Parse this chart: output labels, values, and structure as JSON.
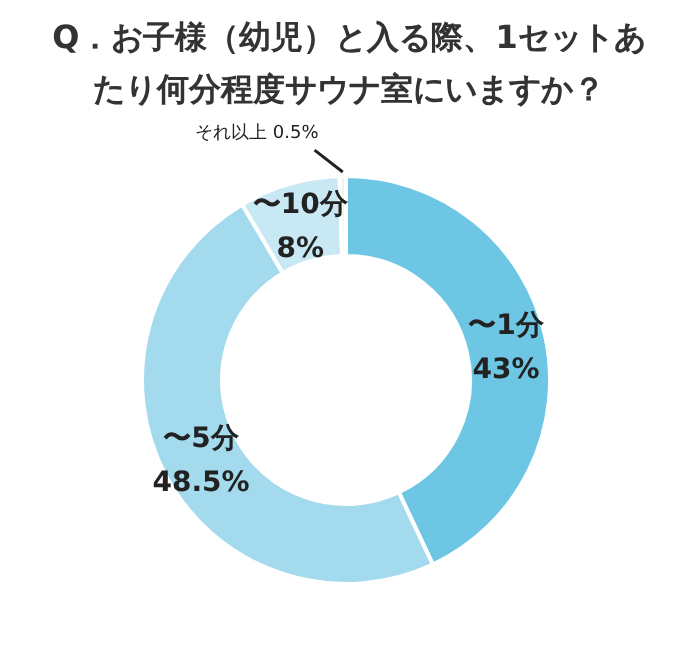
{
  "chart_data": {
    "type": "donut",
    "title": "Q．お子様（幼児）と入る際、1セットあたり何分程度サウナ室にいますか？",
    "categories": [
      "〜1分",
      "〜5分",
      "〜10分",
      "それ以上"
    ],
    "values": [
      43,
      48.5,
      8,
      0.5
    ],
    "value_labels": [
      "43%",
      "48.5%",
      "8%",
      "0.5%"
    ],
    "colors": [
      "#6cc6e4",
      "#a3daee",
      "#c8e8f4",
      "#e8f5fa"
    ],
    "legend": false
  }
}
